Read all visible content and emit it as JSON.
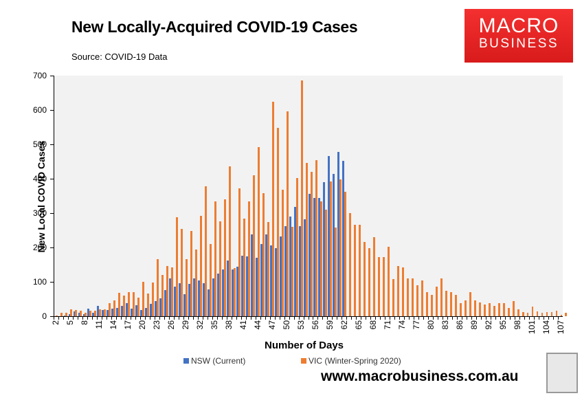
{
  "header": {
    "title": "New Locally-Acquired COVID-19 Cases",
    "source": "Source: COVID-19 Data",
    "logo_line1": "MACRO",
    "logo_line2": "BUSINESS"
  },
  "footer": {
    "url": "www.macrobusiness.com.au"
  },
  "colors": {
    "nsw": "#4472c4",
    "vic": "#ed7d31",
    "plot_bg": "#f2f2f2",
    "logo_red": "#e52222"
  },
  "chart_data": {
    "type": "bar",
    "title": "New Locally-Acquired COVID-19 Cases",
    "subtitle": "Source: COVID-19 Data",
    "xlabel": "Number of Days",
    "ylabel": "New Local COVID Cases",
    "ylim": [
      0,
      700
    ],
    "yticks": [
      0,
      100,
      200,
      300,
      400,
      500,
      600,
      700
    ],
    "xticks_shown": [
      2,
      5,
      8,
      11,
      14,
      17,
      20,
      23,
      26,
      29,
      32,
      35,
      38,
      41,
      44,
      47,
      50,
      53,
      56,
      59,
      62,
      65,
      68,
      71,
      74,
      77,
      80,
      83,
      86,
      89,
      92,
      95,
      98,
      101,
      104,
      107
    ],
    "x_start": 2,
    "x_end": 107,
    "legend_position": "bottom",
    "grid": false,
    "series": [
      {
        "name": "NSW (Current)",
        "color": "#4472c4",
        "values": [
          0,
          1,
          2,
          6,
          15,
          11,
          6,
          22,
          10,
          30,
          18,
          18,
          22,
          25,
          30,
          38,
          23,
          33,
          18,
          25,
          37,
          44,
          53,
          77,
          110,
          87,
          97,
          65,
          94,
          110,
          104,
          97,
          79,
          110,
          124,
          136,
          163,
          137,
          145,
          177,
          175,
          239,
          170,
          210,
          238,
          207,
          199,
          233,
          262,
          290,
          318,
          262,
          282,
          357,
          344,
          344,
          390,
          466,
          415,
          478,
          452
        ]
      },
      {
        "name": "VIC (Winter-Spring 2020)",
        "color": "#ed7d31",
        "values": [
          3,
          10,
          10,
          21,
          18,
          16,
          10,
          17,
          17,
          20,
          20,
          38,
          46,
          68,
          60,
          70,
          70,
          55,
          100,
          66,
          99,
          167,
          120,
          147,
          143,
          289,
          255,
          166,
          248,
          195,
          293,
          378,
          210,
          335,
          276,
          340,
          437,
          140,
          373,
          285,
          334,
          410,
          492,
          359,
          274,
          625,
          549,
          369,
          597,
          261,
          402,
          686,
          446,
          421,
          454,
          335,
          311,
          393,
          258,
          399,
          362,
          300,
          266,
          266,
          216,
          199,
          230,
          172,
          173,
          202,
          109,
          147,
          143,
          111,
          111,
          90,
          105,
          70,
          62,
          86,
          110,
          74,
          71,
          63,
          38,
          46,
          70,
          46,
          41,
          35,
          39,
          30,
          39,
          39,
          25,
          44,
          20,
          13,
          11,
          28,
          14,
          10,
          13,
          13,
          17,
          5,
          10
        ]
      }
    ]
  },
  "legend": [
    {
      "label": "NSW (Current)",
      "color": "#4472c4"
    },
    {
      "label": "VIC (Winter-Spring 2020)",
      "color": "#ed7d31"
    }
  ]
}
